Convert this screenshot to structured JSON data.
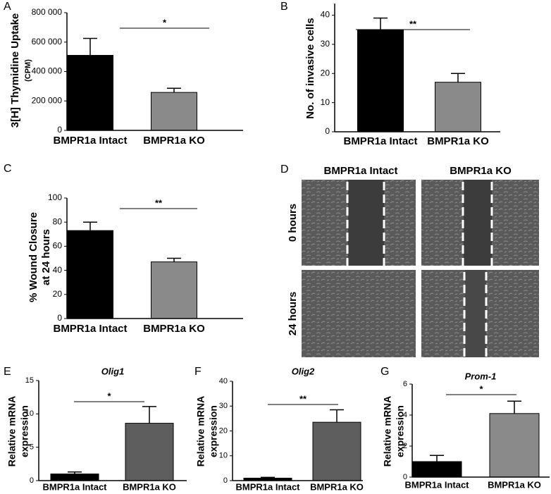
{
  "chart_data": [
    {
      "type": "bar",
      "panel": "A",
      "ylabel": [
        "3[H] Thymidine Uptake",
        "(CPM)"
      ],
      "categories": [
        "BMPR1a Intact",
        "BMPR1a KO"
      ],
      "values": [
        510000,
        258000
      ],
      "errors": [
        115000,
        28000
      ],
      "colors": [
        "#000000",
        "#8a8a8a"
      ],
      "annotation": "*",
      "ylim": [
        0,
        800000
      ],
      "yticks": [
        0,
        {
          "value": 200000,
          "label": "200 000"
        },
        {
          "value": 400000,
          "label": "400 000"
        },
        {
          "value": 600000,
          "label": "600 000"
        },
        {
          "value": 800000,
          "label": "800 000"
        }
      ]
    },
    {
      "type": "bar",
      "panel": "B",
      "ylabel": [
        "No. of invasive cells"
      ],
      "categories": [
        "BMPR1a Intact",
        "BMPR1a KO"
      ],
      "values": [
        35,
        17
      ],
      "errors": [
        4,
        3
      ],
      "colors": [
        "#000000",
        "#8a8a8a"
      ],
      "annotation": "**",
      "ylim": [
        0,
        44
      ],
      "yticks": [
        0,
        10,
        20,
        30,
        40
      ]
    },
    {
      "type": "bar",
      "panel": "C",
      "ylabel": [
        "% Wound Closure",
        "at 24 hours"
      ],
      "categories": [
        "BMPR1a Intact",
        "BMPR1a KO"
      ],
      "values": [
        73,
        47
      ],
      "errors": [
        7,
        3
      ],
      "colors": [
        "#000000",
        "#8a8a8a"
      ],
      "annotation": "**",
      "ylim": [
        0,
        100
      ],
      "yticks": [
        0,
        20,
        40,
        60,
        80,
        100
      ]
    },
    {
      "type": "bar",
      "panel": "E",
      "title": "Olig1",
      "ylabel": [
        "Relative mRNA",
        "expression"
      ],
      "categories": [
        "BMPR1a Intact",
        "BMPR1a KO"
      ],
      "values": [
        1.0,
        8.6
      ],
      "errors": [
        0.3,
        2.5
      ],
      "colors": [
        "#000000",
        "#5e5e5e"
      ],
      "annotation": "*",
      "ylim": [
        0,
        15
      ],
      "yticks": [
        0,
        5,
        10,
        15
      ]
    },
    {
      "type": "bar",
      "panel": "F",
      "title": "Olig2",
      "ylabel": [
        "Relative mRNA",
        "expression"
      ],
      "categories": [
        "BMPR1a Intact",
        "BMPR1a KO"
      ],
      "values": [
        1.0,
        23.5
      ],
      "errors": [
        0.3,
        5
      ],
      "colors": [
        "#000000",
        "#5e5e5e"
      ],
      "annotation": "**",
      "ylim": [
        0,
        40
      ],
      "yticks": [
        0,
        10,
        20,
        30,
        40
      ]
    },
    {
      "type": "bar",
      "panel": "G",
      "title": "Prom-1",
      "ylabel": [
        "Relative mRNA",
        "expression"
      ],
      "categories": [
        "BMPR1a Intact",
        "BMPR1a KO"
      ],
      "values": [
        1.0,
        4.1
      ],
      "errors": [
        0.4,
        0.8
      ],
      "colors": [
        "#000000",
        "#8a8a8a"
      ],
      "annotation": "*",
      "ylim": [
        0,
        6
      ],
      "yticks": [
        0,
        2,
        4,
        6
      ]
    }
  ],
  "image_panel": {
    "panel": "D",
    "columns": [
      "BMPR1a Intact",
      "BMPR1a KO"
    ],
    "rows": [
      "0 hours",
      "24 hours"
    ]
  }
}
